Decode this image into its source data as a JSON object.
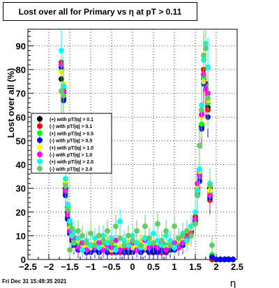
{
  "title": "Lost over all for Primary vs    η at pT > 0.11",
  "footer_date": "Fri Dec 31 15:49:35 2021",
  "chart_data": {
    "type": "scatter",
    "title": "Lost over all for Primary vs    η at pT > 0.11",
    "xlabel": "η",
    "ylabel": "Lost over all (%)",
    "xlim": [
      -2.5,
      2.5
    ],
    "ylim": [
      0,
      97
    ],
    "x_ticks": [
      -2.5,
      -2,
      -1.5,
      -1,
      -0.5,
      0,
      0.5,
      1,
      1.5,
      2,
      2.5
    ],
    "x_tick_labels": [
      "−2.5",
      "−2",
      "−1.5",
      "−1",
      "−0.5",
      "0",
      "0.5",
      "1",
      "1.5",
      "2",
      "2.5"
    ],
    "y_ticks": [
      0,
      10,
      20,
      30,
      40,
      50,
      60,
      70,
      80,
      90
    ],
    "y_tick_labels": [
      "0",
      "10",
      "20",
      "30",
      "40",
      "50",
      "60",
      "70",
      "80",
      "90"
    ],
    "grid": true,
    "legend_position": "left",
    "series": [
      {
        "name": "(+) with pT/|q| > 0.1",
        "color": "#000000",
        "x": [
          -1.7,
          -1.65,
          -1.6,
          -1.55,
          -1.5,
          -1.45,
          -1.4,
          -1.3,
          -1.2,
          -1.1,
          -1.0,
          -0.9,
          -0.8,
          -0.7,
          -0.6,
          -0.5,
          -0.4,
          -0.3,
          -0.2,
          -0.1,
          0,
          0.1,
          0.2,
          0.3,
          0.4,
          0.5,
          0.6,
          0.7,
          0.8,
          0.9,
          1.0,
          1.1,
          1.2,
          1.3,
          1.4,
          1.5,
          1.55,
          1.6,
          1.65,
          1.7,
          1.75,
          1.8,
          1.85,
          1.9,
          2.0,
          2.1,
          2.2,
          2.3,
          2.4
        ],
        "y": [
          76,
          68,
          30,
          20,
          15,
          11,
          8,
          6,
          5,
          4,
          4,
          5,
          4,
          6,
          5,
          4,
          3,
          4,
          5,
          3,
          4,
          4,
          3,
          5,
          4,
          3,
          4,
          5,
          3,
          4,
          5,
          6,
          7,
          9,
          12,
          17,
          29,
          35,
          56,
          76,
          74,
          64,
          30,
          1,
          0,
          0,
          0,
          0,
          0
        ]
      },
      {
        "name": "(-) with pT/|q| > 0.1",
        "color": "#ff0000",
        "x": [
          -1.7,
          -1.65,
          -1.6,
          -1.55,
          -1.5,
          -1.45,
          -1.4,
          -1.3,
          -1.2,
          -1.1,
          -1.0,
          -0.9,
          -0.8,
          -0.7,
          -0.6,
          -0.5,
          -0.4,
          -0.3,
          -0.2,
          -0.1,
          0,
          0.1,
          0.2,
          0.3,
          0.4,
          0.5,
          0.6,
          0.7,
          0.8,
          0.9,
          1.0,
          1.1,
          1.2,
          1.3,
          1.4,
          1.5,
          1.55,
          1.6,
          1.65,
          1.7,
          1.75,
          1.8,
          1.85,
          1.9,
          2.0,
          2.1,
          2.2,
          2.3,
          2.4
        ],
        "y": [
          83,
          70,
          28,
          18,
          12,
          9,
          7,
          5,
          4,
          3,
          4,
          4,
          3,
          5,
          4,
          3,
          4,
          3,
          4,
          5,
          3,
          4,
          5,
          4,
          3,
          4,
          5,
          3,
          4,
          5,
          4,
          5,
          8,
          10,
          14,
          18,
          30,
          36,
          63,
          80,
          72,
          63,
          25,
          0,
          0,
          0,
          0,
          0,
          0
        ]
      },
      {
        "name": "(+) with pT/|q| > 0.5",
        "color": "#00ff00",
        "x": [
          -1.7,
          -1.65,
          -1.6,
          -1.55,
          -1.5,
          -1.45,
          -1.4,
          -1.3,
          -1.2,
          -1.1,
          -1.0,
          -0.9,
          -0.8,
          -0.7,
          -0.6,
          -0.5,
          -0.4,
          -0.3,
          -0.2,
          -0.1,
          0,
          0.1,
          0.2,
          0.3,
          0.4,
          0.5,
          0.6,
          0.7,
          0.8,
          0.9,
          1.0,
          1.1,
          1.2,
          1.3,
          1.4,
          1.5,
          1.55,
          1.6,
          1.65,
          1.7,
          1.75,
          1.8,
          1.85,
          1.9
        ],
        "y": [
          80,
          72,
          32,
          22,
          14,
          10,
          9,
          7,
          6,
          5,
          6,
          4,
          5,
          7,
          4,
          6,
          5,
          4,
          6,
          5,
          4,
          6,
          5,
          4,
          5,
          6,
          4,
          5,
          6,
          5,
          6,
          7,
          6,
          8,
          11,
          16,
          28,
          34,
          57,
          77,
          73,
          66,
          28,
          2
        ]
      },
      {
        "name": "(-) with pT/|q| > 0.5",
        "color": "#0000ff",
        "x": [
          -1.7,
          -1.65,
          -1.6,
          -1.55,
          -1.5,
          -1.45,
          -1.4,
          -1.3,
          -1.2,
          -1.1,
          -1.0,
          -0.9,
          -0.8,
          -0.7,
          -0.6,
          -0.5,
          -0.4,
          -0.3,
          -0.2,
          -0.1,
          0,
          0.1,
          0.2,
          0.3,
          0.4,
          0.5,
          0.6,
          0.7,
          0.8,
          0.9,
          1.0,
          1.1,
          1.2,
          1.3,
          1.4,
          1.5,
          1.55,
          1.6,
          1.65,
          1.7,
          1.75,
          1.8,
          1.85,
          1.9,
          2.0,
          2.1,
          2.2,
          2.3,
          2.4
        ],
        "y": [
          81,
          67,
          27,
          17,
          11,
          8,
          6,
          4,
          5,
          3,
          3,
          4,
          3,
          4,
          3,
          5,
          3,
          4,
          3,
          4,
          3,
          5,
          3,
          4,
          3,
          4,
          3,
          4,
          3,
          5,
          4,
          5,
          6,
          8,
          12,
          16,
          27,
          33,
          55,
          74,
          71,
          60,
          26,
          1,
          0,
          0,
          0,
          0,
          0
        ]
      },
      {
        "name": "(+) with pT/|q| > 1.0",
        "color": "#ffff00",
        "x": [
          -1.7,
          -1.65,
          -1.6,
          -1.55,
          -1.5,
          -1.45,
          -1.4,
          -1.3,
          -1.2,
          -1.1,
          -1.0,
          -0.9,
          -0.8,
          -0.7,
          -0.6,
          -0.5,
          -0.4,
          -0.3,
          -0.2,
          -0.1,
          0,
          0.1,
          0.2,
          0.3,
          0.4,
          0.5,
          0.6,
          0.7,
          0.8,
          0.9,
          1.0,
          1.1,
          1.2,
          1.3,
          1.4,
          1.5,
          1.55,
          1.6,
          1.65,
          1.7,
          1.75,
          1.8,
          1.85
        ],
        "y": [
          79,
          74,
          33,
          21,
          13,
          12,
          8,
          8,
          5,
          6,
          5,
          7,
          6,
          5,
          8,
          4,
          7,
          5,
          6,
          7,
          5,
          6,
          8,
          5,
          6,
          7,
          6,
          8,
          5,
          7,
          6,
          8,
          9,
          7,
          13,
          15,
          31,
          37,
          60,
          75,
          70,
          67,
          29
        ]
      },
      {
        "name": "(-) with pT/|q| > 1.0",
        "color": "#ff00ff",
        "x": [
          -1.7,
          -1.65,
          -1.6,
          -1.55,
          -1.5,
          -1.45,
          -1.4,
          -1.3,
          -1.2,
          -1.1,
          -1.0,
          -0.9,
          -0.8,
          -0.7,
          -0.6,
          -0.5,
          -0.4,
          -0.3,
          -0.2,
          -0.1,
          0,
          0.1,
          0.2,
          0.3,
          0.4,
          0.5,
          0.6,
          0.7,
          0.8,
          0.9,
          1.0,
          1.1,
          1.2,
          1.3,
          1.4,
          1.5,
          1.55,
          1.6,
          1.65,
          1.7,
          1.75,
          1.8,
          1.85
        ],
        "y": [
          82,
          71,
          29,
          19,
          12,
          11,
          9,
          5,
          7,
          4,
          6,
          5,
          7,
          4,
          6,
          5,
          8,
          4,
          6,
          5,
          7,
          4,
          6,
          8,
          5,
          6,
          5,
          7,
          4,
          6,
          7,
          5,
          7,
          9,
          11,
          17,
          32,
          35,
          61,
          78,
          72,
          70,
          27
        ]
      },
      {
        "name": "(+) with pT/|q| > 2.0",
        "color": "#00ffff",
        "x": [
          -1.7,
          -1.65,
          -1.6,
          -1.55,
          -1.5,
          -1.45,
          -1.4,
          -1.3,
          -1.2,
          -1.1,
          -1.0,
          -0.9,
          -0.8,
          -0.7,
          -0.6,
          -0.5,
          -0.4,
          -0.3,
          -0.2,
          -0.1,
          0,
          0.1,
          0.2,
          0.3,
          0.4,
          0.5,
          0.6,
          0.7,
          0.8,
          0.9,
          1.0,
          1.1,
          1.2,
          1.3,
          1.4,
          1.5,
          1.55,
          1.6,
          1.65,
          1.7,
          1.75,
          1.8,
          1.85
        ],
        "y": [
          88,
          73,
          34,
          23,
          16,
          10,
          12,
          9,
          4,
          8,
          6,
          9,
          5,
          10,
          7,
          9,
          4,
          16,
          8,
          6,
          10,
          7,
          5,
          9,
          7,
          11,
          8,
          6,
          10,
          8,
          5,
          9,
          11,
          8,
          14,
          20,
          29,
          38,
          65,
          84,
          91,
          81,
          32
        ]
      },
      {
        "name": "(-) with pT/|q| > 2.0",
        "color": "#66cc66",
        "x": [
          -1.7,
          -1.65,
          -1.6,
          -1.55,
          -1.5,
          -1.45,
          -1.4,
          -1.3,
          -1.2,
          -1.1,
          -1.0,
          -0.9,
          -0.8,
          -0.7,
          -0.6,
          -0.5,
          -0.4,
          -0.3,
          -0.2,
          -0.1,
          0,
          0.1,
          0.2,
          0.3,
          0.4,
          0.5,
          0.6,
          0.7,
          0.8,
          0.9,
          1.0,
          1.1,
          1.2,
          1.3,
          1.4,
          1.5,
          1.55,
          1.6,
          1.65,
          1.7,
          1.75,
          1.8,
          1.85,
          1.9
        ],
        "y": [
          71,
          69,
          31,
          21,
          4,
          13,
          7,
          12,
          10,
          7,
          11,
          6,
          10,
          8,
          12,
          7,
          14,
          9,
          6,
          10,
          8,
          12,
          6,
          14,
          9,
          7,
          15,
          8,
          12,
          6,
          14,
          9,
          10,
          12,
          10,
          15,
          27,
          48,
          63,
          86,
          89,
          68,
          31,
          6
        ]
      }
    ]
  }
}
